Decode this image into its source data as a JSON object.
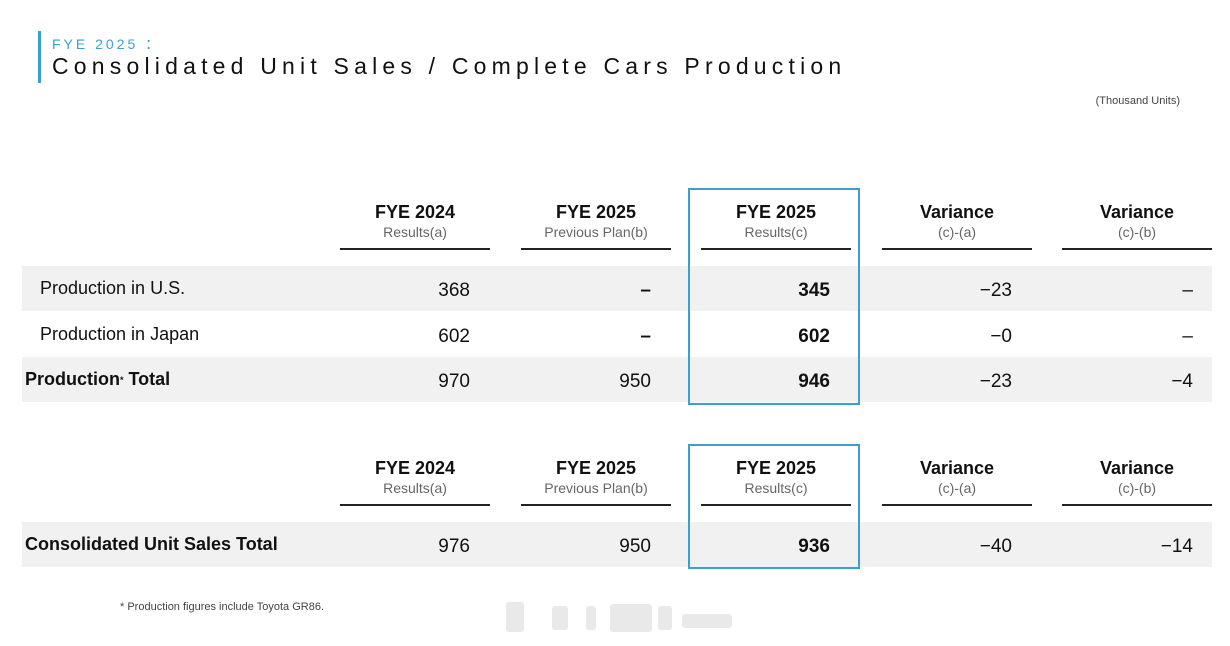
{
  "header": {
    "eyebrow": "FYE 2025 ：",
    "title": "Consolidated Unit Sales / Complete Cars Production",
    "unit": "(Thousand Units)"
  },
  "columns": [
    {
      "title": "FYE 2024",
      "sub": "Results(a)"
    },
    {
      "title": "FYE 2025",
      "sub": "Previous Plan(b)"
    },
    {
      "title": "FYE 2025",
      "sub": "Results(c)"
    },
    {
      "title": "Variance",
      "sub": "(c)-(a)"
    },
    {
      "title": "Variance",
      "sub": "(c)-(b)"
    }
  ],
  "production": {
    "rows": [
      {
        "label": "Production in U.S.",
        "values": [
          "368",
          "–",
          "345",
          "−23",
          "–"
        ]
      },
      {
        "label": "Production in Japan",
        "values": [
          "602",
          "–",
          "602",
          "−0",
          "–"
        ]
      },
      {
        "label": "Production",
        "label_mark": "*",
        "label_suffix": " Total",
        "values": [
          "970",
          "950",
          "946",
          "−23",
          "−4"
        ]
      }
    ]
  },
  "sales": {
    "rows": [
      {
        "label": "Consolidated Unit Sales Total",
        "values": [
          "976",
          "950",
          "936",
          "−40",
          "−14"
        ]
      }
    ]
  },
  "footnote": "* Production figures include Toyota GR86.",
  "colors": {
    "accent": "#3aa0cf",
    "row_shade": "#f1f1f1"
  }
}
